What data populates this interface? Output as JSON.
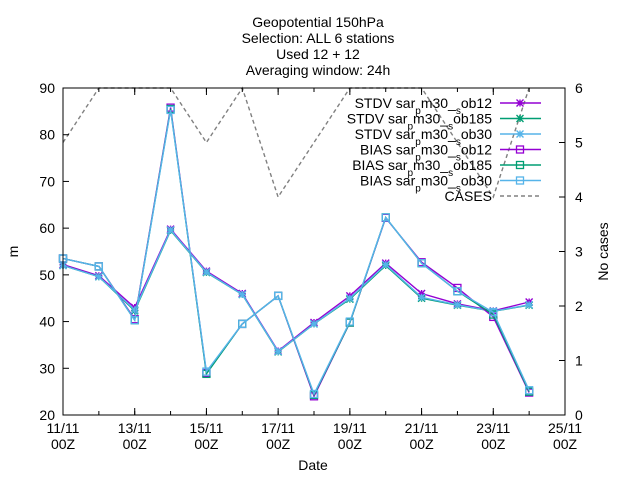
{
  "chart_data": {
    "type": "line",
    "title_lines": [
      "Geopotential 150hPa",
      "Selection: ALL       6 stations",
      "Used 12 + 12",
      "Averaging window: 24h"
    ],
    "xlabel": "Date",
    "ylabel": "m",
    "y2label": "No cases",
    "x_ticks": [
      {
        "day": 11,
        "lines": [
          "11/11",
          "00Z"
        ]
      },
      {
        "day": 13,
        "lines": [
          "13/11",
          "00Z"
        ]
      },
      {
        "day": 15,
        "lines": [
          "15/11",
          "00Z"
        ]
      },
      {
        "day": 17,
        "lines": [
          "17/11",
          "00Z"
        ]
      },
      {
        "day": 19,
        "lines": [
          "19/11",
          "00Z"
        ]
      },
      {
        "day": 21,
        "lines": [
          "21/11",
          "00Z"
        ]
      },
      {
        "day": 23,
        "lines": [
          "23/11",
          "00Z"
        ]
      },
      {
        "day": 25,
        "lines": [
          "25/11",
          "00Z"
        ]
      }
    ],
    "xlim": [
      11,
      25
    ],
    "ylim": [
      20,
      90
    ],
    "y_ticks": [
      20,
      30,
      40,
      50,
      60,
      70,
      80,
      90
    ],
    "y2lim": [
      0,
      6
    ],
    "y2_ticks": [
      0,
      1,
      2,
      3,
      4,
      5,
      6
    ],
    "legend_position": "top-right",
    "x": [
      11,
      12,
      13,
      14,
      15,
      16,
      17,
      18,
      19,
      20,
      21,
      22,
      23,
      24
    ],
    "series": [
      {
        "name": "STDV sar_pm30_sob12",
        "legend_label": [
          "STDV sar",
          "p",
          "m30_",
          "s",
          "ob12"
        ],
        "color": "#9400d3",
        "marker": "x-star",
        "axis": "y",
        "values": [
          52.2,
          49.8,
          43.0,
          59.8,
          50.8,
          46.0,
          33.7,
          39.8,
          45.5,
          52.5,
          46.0,
          43.8,
          42.3,
          44.2
        ]
      },
      {
        "name": "STDV sar_pm30_sob185",
        "legend_label": [
          "STDV sar",
          "p",
          "m30_",
          "s",
          "ob185"
        ],
        "color": "#009e73",
        "marker": "x-star",
        "axis": "y",
        "values": [
          52.0,
          49.6,
          42.3,
          59.5,
          50.5,
          45.8,
          33.5,
          39.5,
          44.8,
          52.0,
          45.0,
          43.5,
          42.2,
          43.5
        ]
      },
      {
        "name": "STDV sar_pm30_sob30",
        "legend_label": [
          "STDV sar",
          "p",
          "m30_",
          "s",
          "ob30"
        ],
        "color": "#56b4e9",
        "marker": "x-star",
        "axis": "y",
        "values": [
          52.0,
          49.6,
          42.5,
          59.6,
          50.6,
          45.8,
          33.6,
          39.5,
          45.0,
          52.2,
          45.2,
          43.6,
          42.2,
          43.6
        ]
      },
      {
        "name": "BIAS sar_pm30_sob12",
        "legend_label": [
          "BIAS sar",
          "p",
          "m30_",
          "s",
          "ob12"
        ],
        "color": "#9400d3",
        "marker": "square",
        "axis": "y",
        "values": [
          53.5,
          51.8,
          40.5,
          85.8,
          29.0,
          39.5,
          45.5,
          24.0,
          39.8,
          62.2,
          52.7,
          47.2,
          41.0,
          24.8
        ]
      },
      {
        "name": "BIAS sar_pm30_sob185",
        "legend_label": [
          "BIAS sar",
          "p",
          "m30_",
          "s",
          "ob185"
        ],
        "color": "#009e73",
        "marker": "square",
        "axis": "y",
        "values": [
          53.5,
          51.8,
          40.3,
          85.5,
          28.8,
          39.5,
          45.5,
          24.3,
          39.8,
          62.3,
          52.5,
          46.5,
          41.5,
          25.0
        ]
      },
      {
        "name": "BIAS sar_pm30_sob30",
        "legend_label": [
          "BIAS sar",
          "p",
          "m30_",
          "s",
          "ob30"
        ],
        "color": "#56b4e9",
        "marker": "square",
        "axis": "y",
        "values": [
          53.5,
          51.8,
          40.3,
          85.3,
          29.3,
          39.5,
          45.5,
          24.5,
          40.0,
          62.3,
          52.5,
          46.5,
          42.0,
          25.3
        ]
      },
      {
        "name": "CASES",
        "legend_label": [
          "CASES"
        ],
        "color": "#808080",
        "marker": "none",
        "dashed": true,
        "axis": "y2",
        "values": [
          5.0,
          6.0,
          6.0,
          6.0,
          5.0,
          6.0,
          4.0,
          5.0,
          6.0,
          6.0,
          6.0,
          5.0,
          4.0,
          6.0
        ]
      }
    ]
  }
}
